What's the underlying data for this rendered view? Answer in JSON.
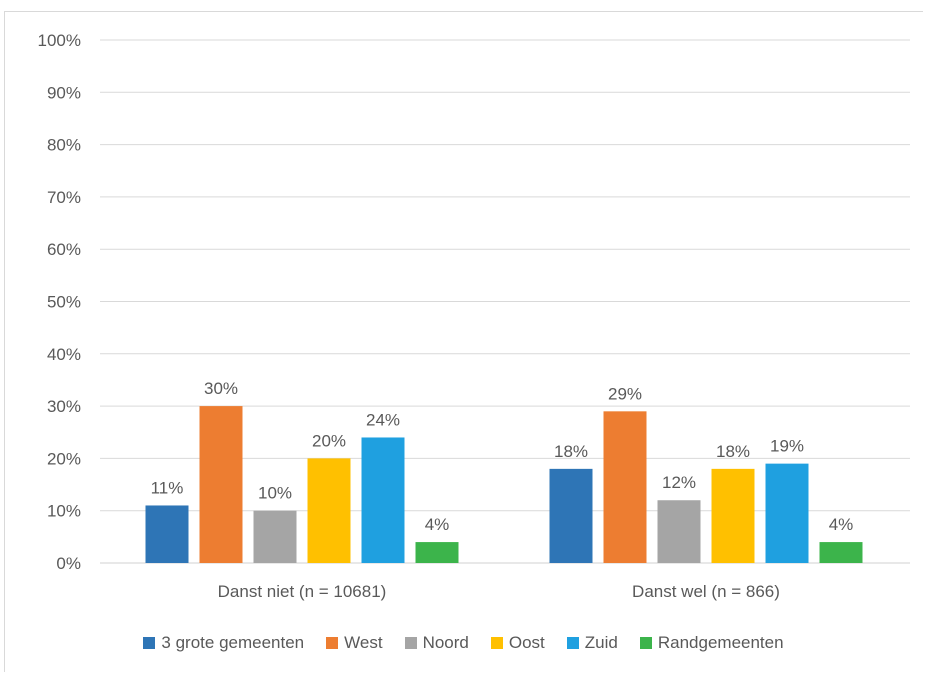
{
  "chart_data": {
    "type": "bar",
    "title": "",
    "xlabel": "",
    "ylabel": "",
    "ylim": [
      0,
      100
    ],
    "y_ticks": [
      "0%",
      "10%",
      "20%",
      "30%",
      "40%",
      "50%",
      "60%",
      "70%",
      "80%",
      "90%",
      "100%"
    ],
    "categories": [
      "Danst niet (n = 10681)",
      "Danst wel (n = 866)"
    ],
    "grid": true,
    "legend_position": "bottom",
    "series": [
      {
        "name": "3 grote gemeenten",
        "color": "#2e75b6",
        "values": [
          11,
          18
        ],
        "labels": [
          "11%",
          "18%"
        ]
      },
      {
        "name": "West",
        "color": "#ed7d31",
        "values": [
          30,
          29
        ],
        "labels": [
          "30%",
          "29%"
        ]
      },
      {
        "name": "Noord",
        "color": "#a5a5a5",
        "values": [
          10,
          12
        ],
        "labels": [
          "10%",
          "12%"
        ]
      },
      {
        "name": "Oost",
        "color": "#ffc000",
        "values": [
          20,
          18
        ],
        "labels": [
          "20%",
          "18%"
        ]
      },
      {
        "name": "Zuid",
        "color": "#1fa0e0",
        "values": [
          24,
          19
        ],
        "labels": [
          "24%",
          "19%"
        ]
      },
      {
        "name": "Randgemeenten",
        "color": "#3cb44b",
        "values": [
          4,
          4
        ],
        "labels": [
          "4%",
          "4%"
        ]
      }
    ]
  }
}
